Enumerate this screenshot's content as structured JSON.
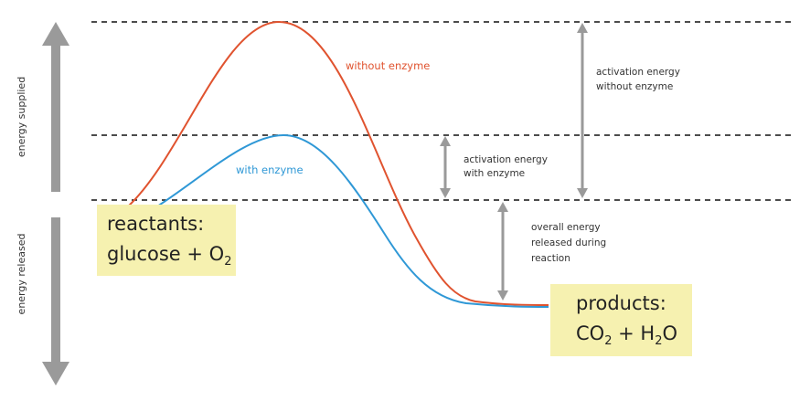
{
  "labels": {
    "energy_supplied": "energy supplied",
    "energy_released": "energy released",
    "without_enzyme": "without enzyme",
    "with_enzyme": "with enzyme",
    "activation_without": [
      "activation energy",
      "without enzyme"
    ],
    "activation_with": [
      "activation energy",
      "with enzyme"
    ],
    "overall": [
      "overall energy",
      "released during",
      "reaction"
    ]
  },
  "reactants": {
    "title": "reactants:",
    "formula_main": "glucose + O",
    "formula_sub": "2"
  },
  "products": {
    "title": "products:",
    "co": "CO",
    "sub1": "2",
    "plus_h": " + H",
    "sub2": "2",
    "o": "O"
  },
  "colors": {
    "without_enzyme": "#e0532f",
    "with_enzyme": "#2f98d6",
    "arrow": "#9a9a9a",
    "box": "#f6f1b0"
  },
  "icons": [
    "up-arrow-icon",
    "down-arrow-icon",
    "double-headed-arrow-icon"
  ]
}
